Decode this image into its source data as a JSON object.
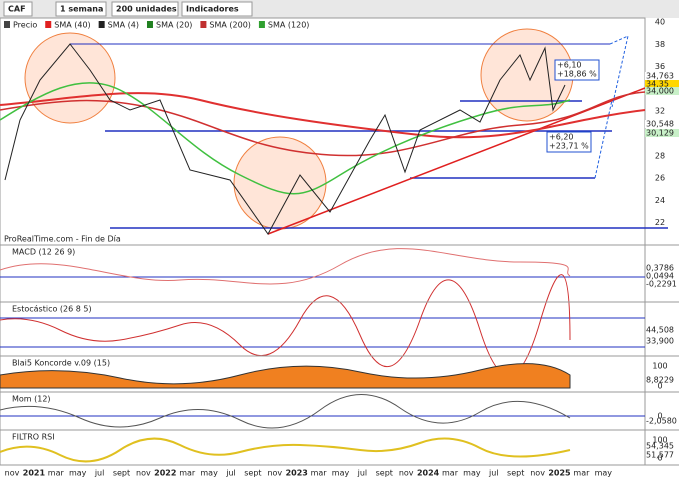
{
  "toolbar": {
    "ticker": "CAF",
    "timeframe": "1 semana",
    "units": "200 unidades",
    "indicators": "Indicadores"
  },
  "legend": [
    "Precio",
    "SMA (40)",
    "SMA (4)",
    "SMA (20)",
    "SMA (200)",
    "SMA (120)"
  ],
  "source": "ProRealTime.com - Fin de Día",
  "price_axis": [
    "40",
    "38",
    "36",
    "34",
    "32",
    "30",
    "28",
    "26",
    "24",
    "22"
  ],
  "price_tags": [
    {
      "text": "34,763",
      "color": "#ffffff"
    },
    {
      "text": "34,35",
      "color": "#ffd700"
    },
    {
      "text": "34,000",
      "color": "#c8f0c8"
    },
    {
      "text": "30,548",
      "color": "#ffffff"
    },
    {
      "text": "30,129",
      "color": "#c8f0c8"
    }
  ],
  "annotations": [
    {
      "lines": [
        "+6,10",
        "+18,86 %"
      ]
    },
    {
      "lines": [
        "+6,20",
        "+23,71 %"
      ]
    }
  ],
  "panels": [
    {
      "title": "MACD (12 26 9)",
      "tags": [
        "0,3786",
        "0,0494",
        "-0,2291"
      ]
    },
    {
      "title": "Estocástico (26 8 5)",
      "tags": [
        "44,508",
        "33,900"
      ]
    },
    {
      "title": "Blai5 Koncorde v.09 (15)",
      "axis": [
        "100",
        "0"
      ],
      "tags": [
        "8,8229"
      ]
    },
    {
      "title": "Mom (12)",
      "axis": [
        "0"
      ],
      "tags": [
        "-2,0580"
      ]
    },
    {
      "title": "FILTRO RSI",
      "axis": [
        "100",
        "0"
      ],
      "tags": [
        "54,345",
        "51,577"
      ]
    }
  ],
  "time_axis": [
    "nov",
    "2021",
    "mar",
    "may",
    "jul",
    "sept",
    "nov",
    "2022",
    "mar",
    "may",
    "jul",
    "sept",
    "nov",
    "2023",
    "mar",
    "may",
    "jul",
    "sept",
    "nov",
    "2024",
    "mar",
    "may",
    "jul",
    "sept",
    "nov",
    "2025",
    "mar",
    "may"
  ]
}
